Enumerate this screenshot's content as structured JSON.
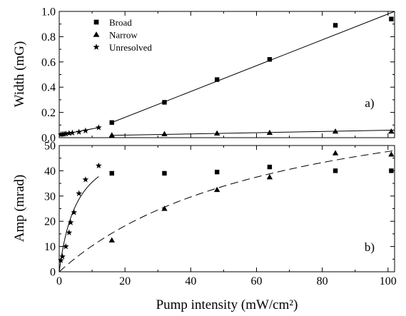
{
  "chart_data": [
    {
      "type": "scatter",
      "panel_label": "a)",
      "ylabel": "Width (mG)",
      "xlim": [
        0,
        102
      ],
      "ylim": [
        0,
        1.0
      ],
      "xticks": [
        "0",
        "20",
        "40",
        "60",
        "80",
        "100"
      ],
      "yticks": [
        "0.0",
        "0.2",
        "0.4",
        "0.6",
        "0.8",
        "1.0"
      ],
      "legend_position": "top-left",
      "series": [
        {
          "name": "Broad",
          "marker": "square",
          "points": [
            [
              16,
              0.12
            ],
            [
              32,
              0.28
            ],
            [
              48,
              0.46
            ],
            [
              64,
              0.62
            ],
            [
              84,
              0.89
            ],
            [
              101,
              0.94
            ]
          ]
        },
        {
          "name": "Narrow",
          "marker": "triangle",
          "points": [
            [
              16,
              0.02
            ],
            [
              32,
              0.03
            ],
            [
              48,
              0.035
            ],
            [
              64,
              0.04
            ],
            [
              84,
              0.05
            ],
            [
              101,
              0.05
            ]
          ]
        },
        {
          "name": "Unresolved",
          "marker": "star",
          "points": [
            [
              0.5,
              0.025
            ],
            [
              1,
              0.027
            ],
            [
              1.5,
              0.029
            ],
            [
              2,
              0.031
            ],
            [
              3,
              0.035
            ],
            [
              4,
              0.038
            ],
            [
              6,
              0.045
            ],
            [
              8,
              0.055
            ],
            [
              12,
              0.08
            ]
          ]
        }
      ],
      "fit_lines": [
        {
          "style": "solid",
          "points": [
            [
              16,
              0.12
            ],
            [
              102,
              1.0
            ]
          ]
        },
        {
          "style": "solid",
          "points": [
            [
              16,
              0.018
            ],
            [
              102,
              0.06
            ]
          ]
        },
        {
          "style": "solid",
          "points": [
            [
              0,
              0.02
            ],
            [
              12,
              0.08
            ]
          ]
        }
      ]
    },
    {
      "type": "scatter",
      "panel_label": "b)",
      "xlabel": "Pump intensity (mW/cm²)",
      "ylabel": "Amp (mrad)",
      "xlim": [
        0,
        102
      ],
      "ylim": [
        0,
        50
      ],
      "xticks": [
        "0",
        "20",
        "40",
        "60",
        "80",
        "100"
      ],
      "yticks": [
        "0",
        "10",
        "20",
        "30",
        "40",
        "50"
      ],
      "series": [
        {
          "name": "Broad",
          "marker": "square",
          "points": [
            [
              16,
              39
            ],
            [
              32,
              39
            ],
            [
              48,
              39.5
            ],
            [
              64,
              41.5
            ],
            [
              84,
              40
            ],
            [
              101,
              40
            ]
          ]
        },
        {
          "name": "Narrow",
          "marker": "triangle",
          "points": [
            [
              16,
              12.5
            ],
            [
              32,
              25
            ],
            [
              48,
              32.5
            ],
            [
              64,
              37.5
            ],
            [
              84,
              47
            ],
            [
              101,
              46.5
            ]
          ]
        },
        {
          "name": "Unresolved",
          "marker": "star",
          "points": [
            [
              0.5,
              4.5
            ],
            [
              1,
              6
            ],
            [
              2,
              10
            ],
            [
              3,
              15.5
            ],
            [
              3.5,
              19.5
            ],
            [
              4.5,
              23.5
            ],
            [
              6,
              31
            ],
            [
              8,
              36.5
            ],
            [
              12,
              42
            ]
          ]
        }
      ],
      "fit_curves": [
        {
          "style": "solid",
          "a": 55,
          "b": 5.5,
          "x_range": [
            0,
            12
          ]
        },
        {
          "style": "dashed",
          "a": 80,
          "b": 68,
          "x_range": [
            0,
            102
          ]
        }
      ]
    }
  ]
}
